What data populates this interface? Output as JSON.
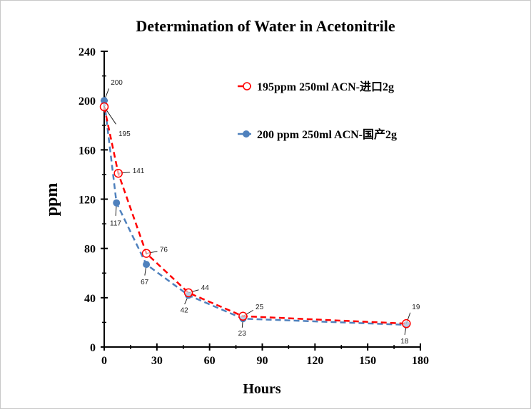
{
  "chart_data": {
    "type": "line",
    "title": "Determination of Water in Acetonitrile",
    "xlabel": "Hours",
    "ylabel": "ppm",
    "xlim": [
      0,
      180
    ],
    "ylim": [
      0,
      240
    ],
    "xticks": [
      "0",
      "30",
      "60",
      "90",
      "120",
      "150",
      "180"
    ],
    "yticks": [
      "0",
      "40",
      "80",
      "120",
      "160",
      "200",
      "240"
    ],
    "grid": false,
    "legend_position": "top-right",
    "series": [
      {
        "name": "195ppm  250ml ACN-进口2g",
        "color": "#ff0000",
        "marker": "open-circle",
        "line": "dashed",
        "x": [
          0,
          8,
          24,
          48,
          79,
          172
        ],
        "values": [
          195,
          141,
          76,
          44,
          25,
          19
        ]
      },
      {
        "name": "200 ppm 250ml ACN-国产2g",
        "color": "#4f81bd",
        "marker": "filled-circle",
        "line": "dashed",
        "x": [
          0,
          7,
          24,
          48,
          79,
          172
        ],
        "values": [
          200,
          117,
          67,
          42,
          23,
          18
        ]
      }
    ]
  }
}
